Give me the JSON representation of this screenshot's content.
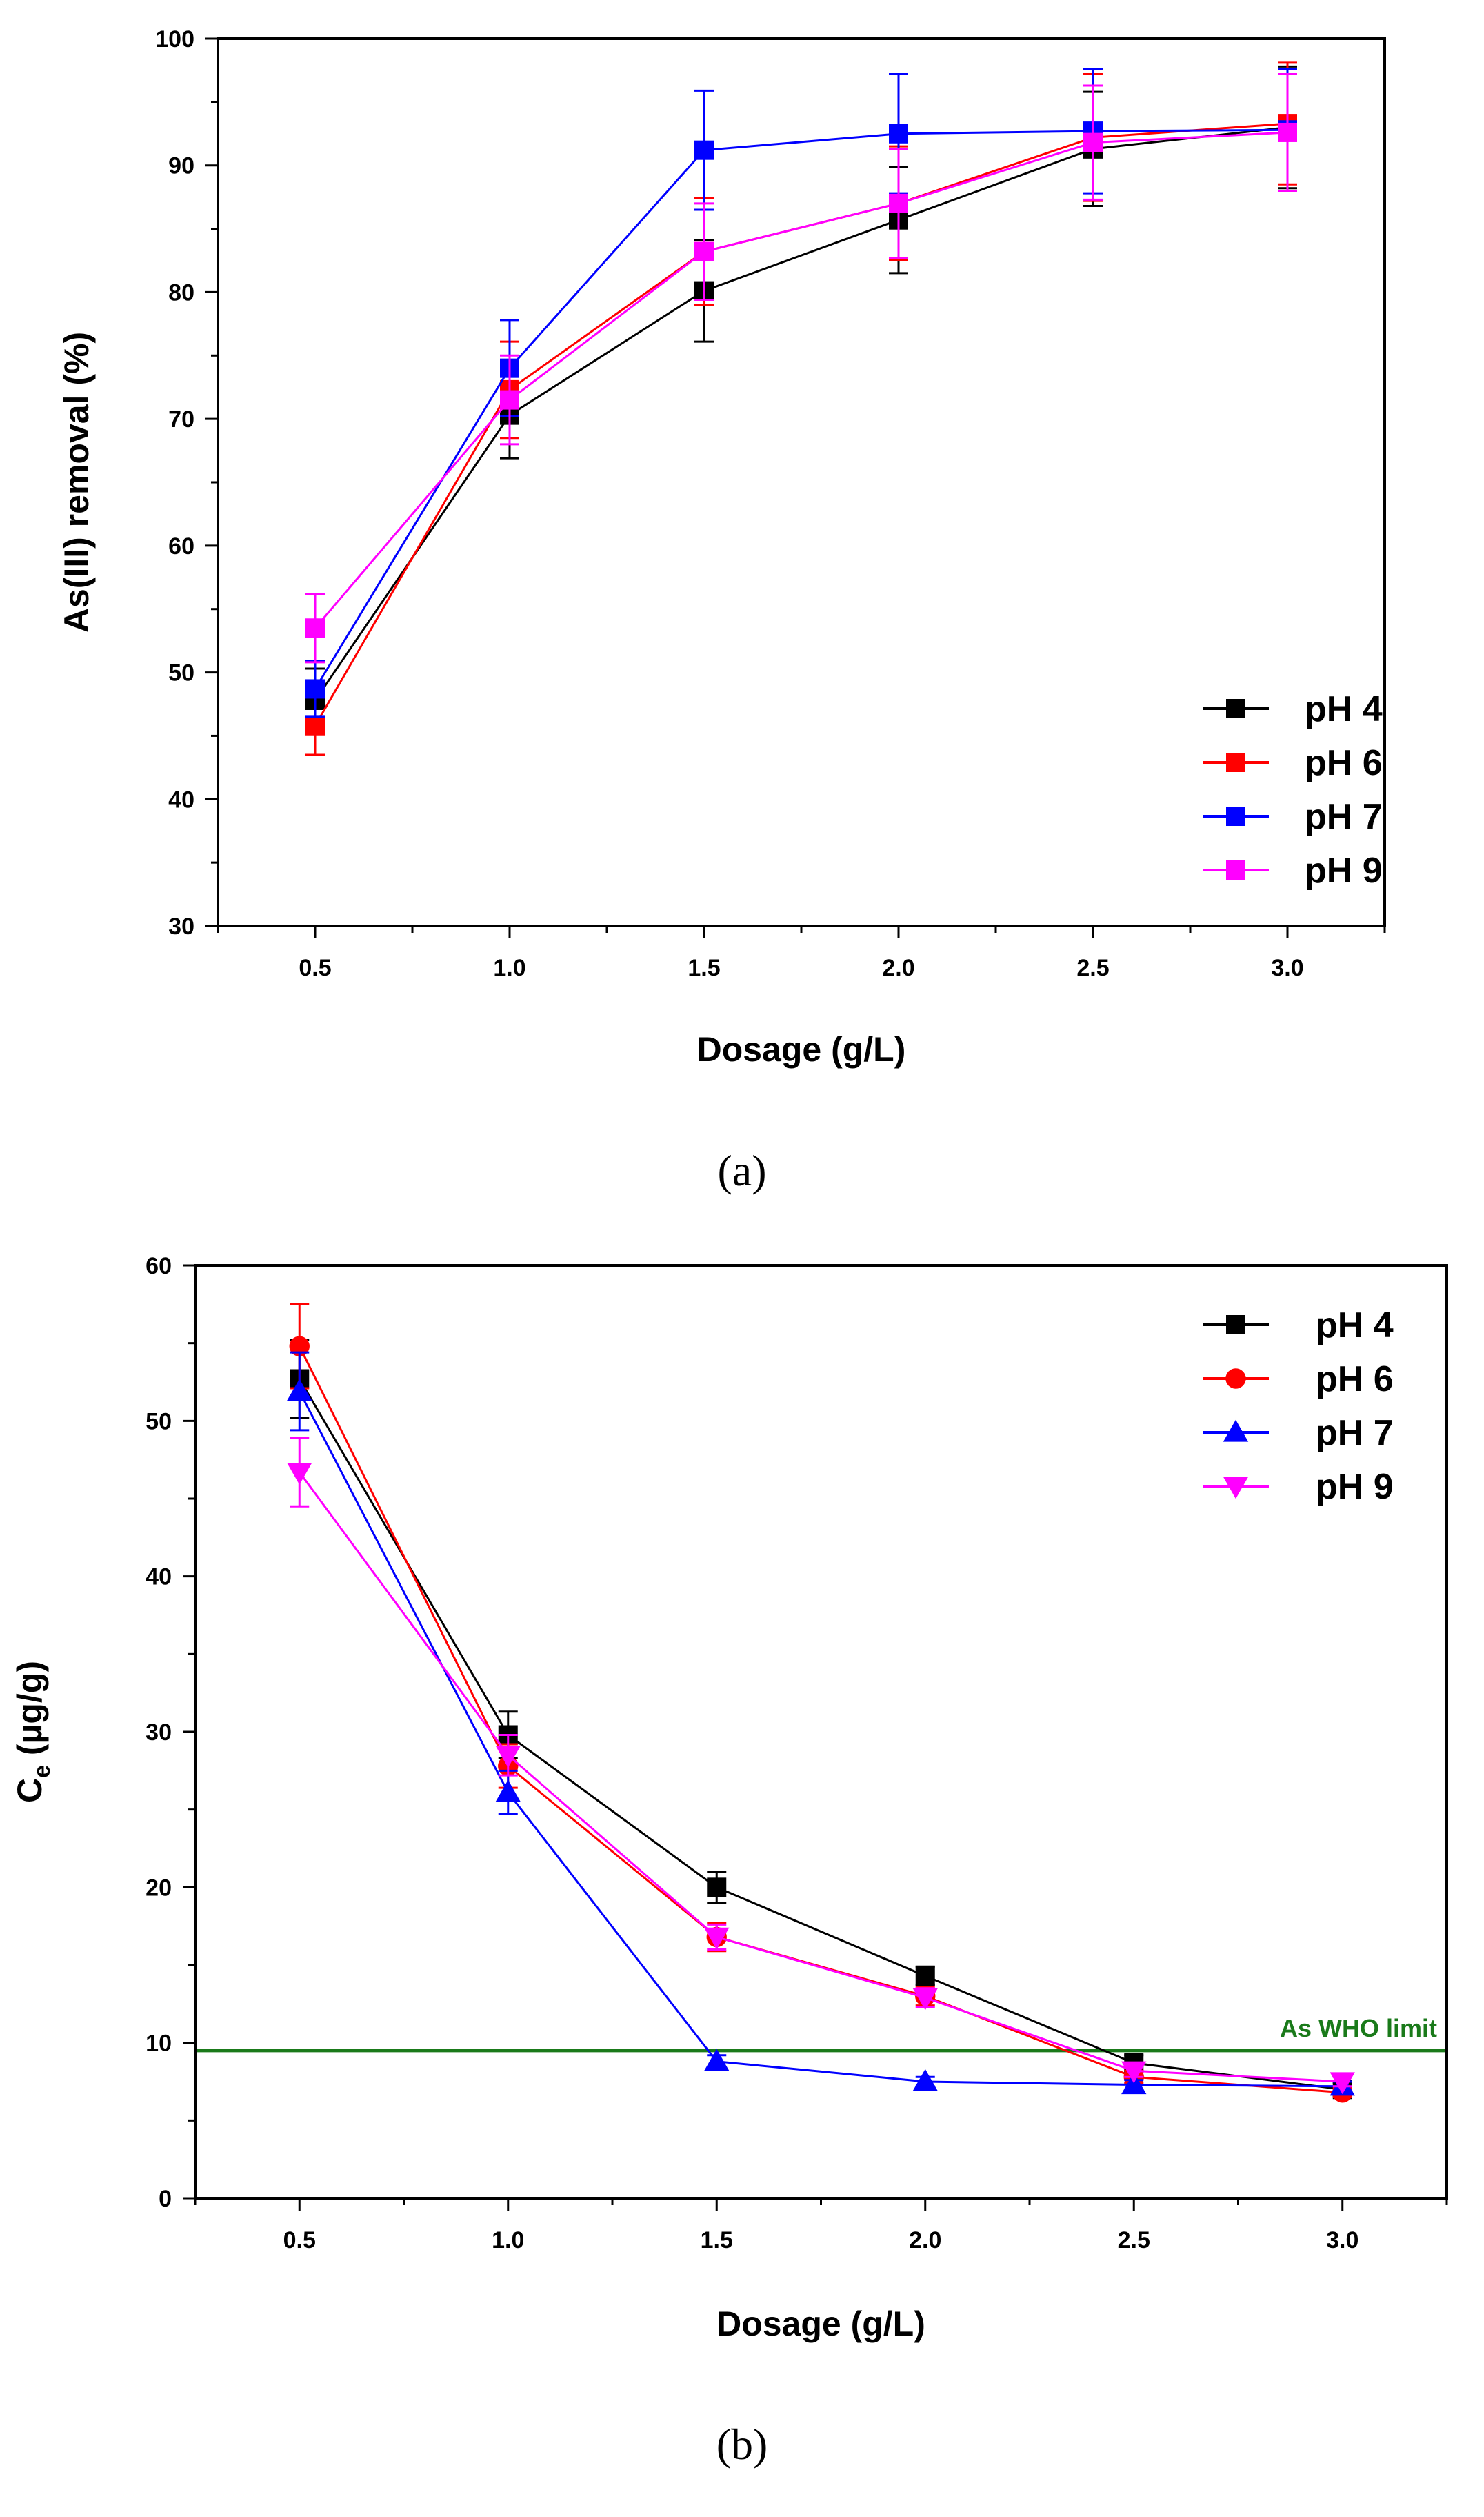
{
  "chart_data": [
    {
      "type": "line",
      "panel_label": "(a)",
      "xlabel": "Dosage (g/L)",
      "ylabel": "As(III) removal (%)",
      "xlim": [
        0.25,
        3.25
      ],
      "ylim": [
        30,
        100
      ],
      "x": [
        0.5,
        1.0,
        1.5,
        2.0,
        2.5,
        3.0
      ],
      "x_tick_labels": [
        "0.5",
        "1.0",
        "1.5",
        "2.0",
        "2.5",
        "3.0"
      ],
      "y_ticks": [
        30,
        40,
        50,
        60,
        70,
        80,
        90,
        100
      ],
      "grid": false,
      "legend_position": "bottom-right",
      "series": [
        {
          "name": "pH 4",
          "color": "#000000",
          "marker": "square",
          "values": [
            47.8,
            70.3,
            80.1,
            85.7,
            91.3,
            93.0
          ],
          "errors": [
            2.5,
            3.4,
            4.0,
            4.2,
            4.5,
            4.8
          ]
        },
        {
          "name": "pH 6",
          "color": "#ff0000",
          "marker": "square",
          "values": [
            45.8,
            72.3,
            83.2,
            87.0,
            92.2,
            93.3
          ],
          "errors": [
            2.3,
            3.8,
            4.2,
            4.5,
            5.0,
            4.8
          ]
        },
        {
          "name": "pH 7",
          "color": "#0000ff",
          "marker": "square",
          "values": [
            48.7,
            74.0,
            91.2,
            92.5,
            92.7,
            92.8
          ],
          "errors": [
            2.2,
            3.8,
            4.7,
            4.7,
            4.9,
            4.8
          ]
        },
        {
          "name": "pH 9",
          "color": "#ff00ff",
          "marker": "square",
          "values": [
            53.5,
            71.5,
            83.2,
            87.0,
            91.8,
            92.6
          ],
          "errors": [
            2.7,
            3.5,
            3.8,
            4.3,
            4.5,
            4.6
          ]
        }
      ]
    },
    {
      "type": "line",
      "panel_label": "(b)",
      "xlabel": "Dosage (g/L)",
      "ylabel_main": "C",
      "ylabel_sub": "e",
      "ylabel_rest": " (µg/g)",
      "xlim": [
        0.25,
        3.25
      ],
      "ylim": [
        0,
        60
      ],
      "x": [
        0.5,
        1.0,
        1.5,
        2.0,
        2.5,
        3.0
      ],
      "x_tick_labels": [
        "0.5",
        "1.0",
        "1.5",
        "2.0",
        "2.5",
        "3.0"
      ],
      "y_ticks": [
        0,
        10,
        20,
        30,
        40,
        50,
        60
      ],
      "grid": false,
      "legend_position": "top-right",
      "reference_line": {
        "label": "As WHO limit",
        "value": 9.5,
        "color": "#1a7a1a"
      },
      "series": [
        {
          "name": "pH 4",
          "color": "#000000",
          "marker": "square",
          "values": [
            52.7,
            29.8,
            20.0,
            14.3,
            8.7,
            7.0
          ],
          "errors": [
            2.5,
            1.5,
            1.0,
            0.6,
            0.5,
            0.4
          ]
        },
        {
          "name": "pH 6",
          "color": "#ff0000",
          "marker": "circle",
          "values": [
            54.8,
            27.8,
            16.8,
            13.0,
            7.8,
            6.8
          ],
          "errors": [
            2.7,
            1.4,
            0.9,
            0.6,
            0.4,
            0.3
          ]
        },
        {
          "name": "pH 7",
          "color": "#0000ff",
          "marker": "triangle-up",
          "values": [
            51.9,
            26.1,
            8.8,
            7.5,
            7.3,
            7.2
          ],
          "errors": [
            2.5,
            1.4,
            0.4,
            0.3,
            0.3,
            0.3
          ]
        },
        {
          "name": "pH 9",
          "color": "#ff00ff",
          "marker": "triangle-down",
          "values": [
            46.7,
            28.5,
            16.8,
            12.9,
            8.2,
            7.5
          ],
          "errors": [
            2.2,
            1.3,
            0.8,
            0.6,
            0.4,
            0.3
          ]
        }
      ]
    }
  ]
}
